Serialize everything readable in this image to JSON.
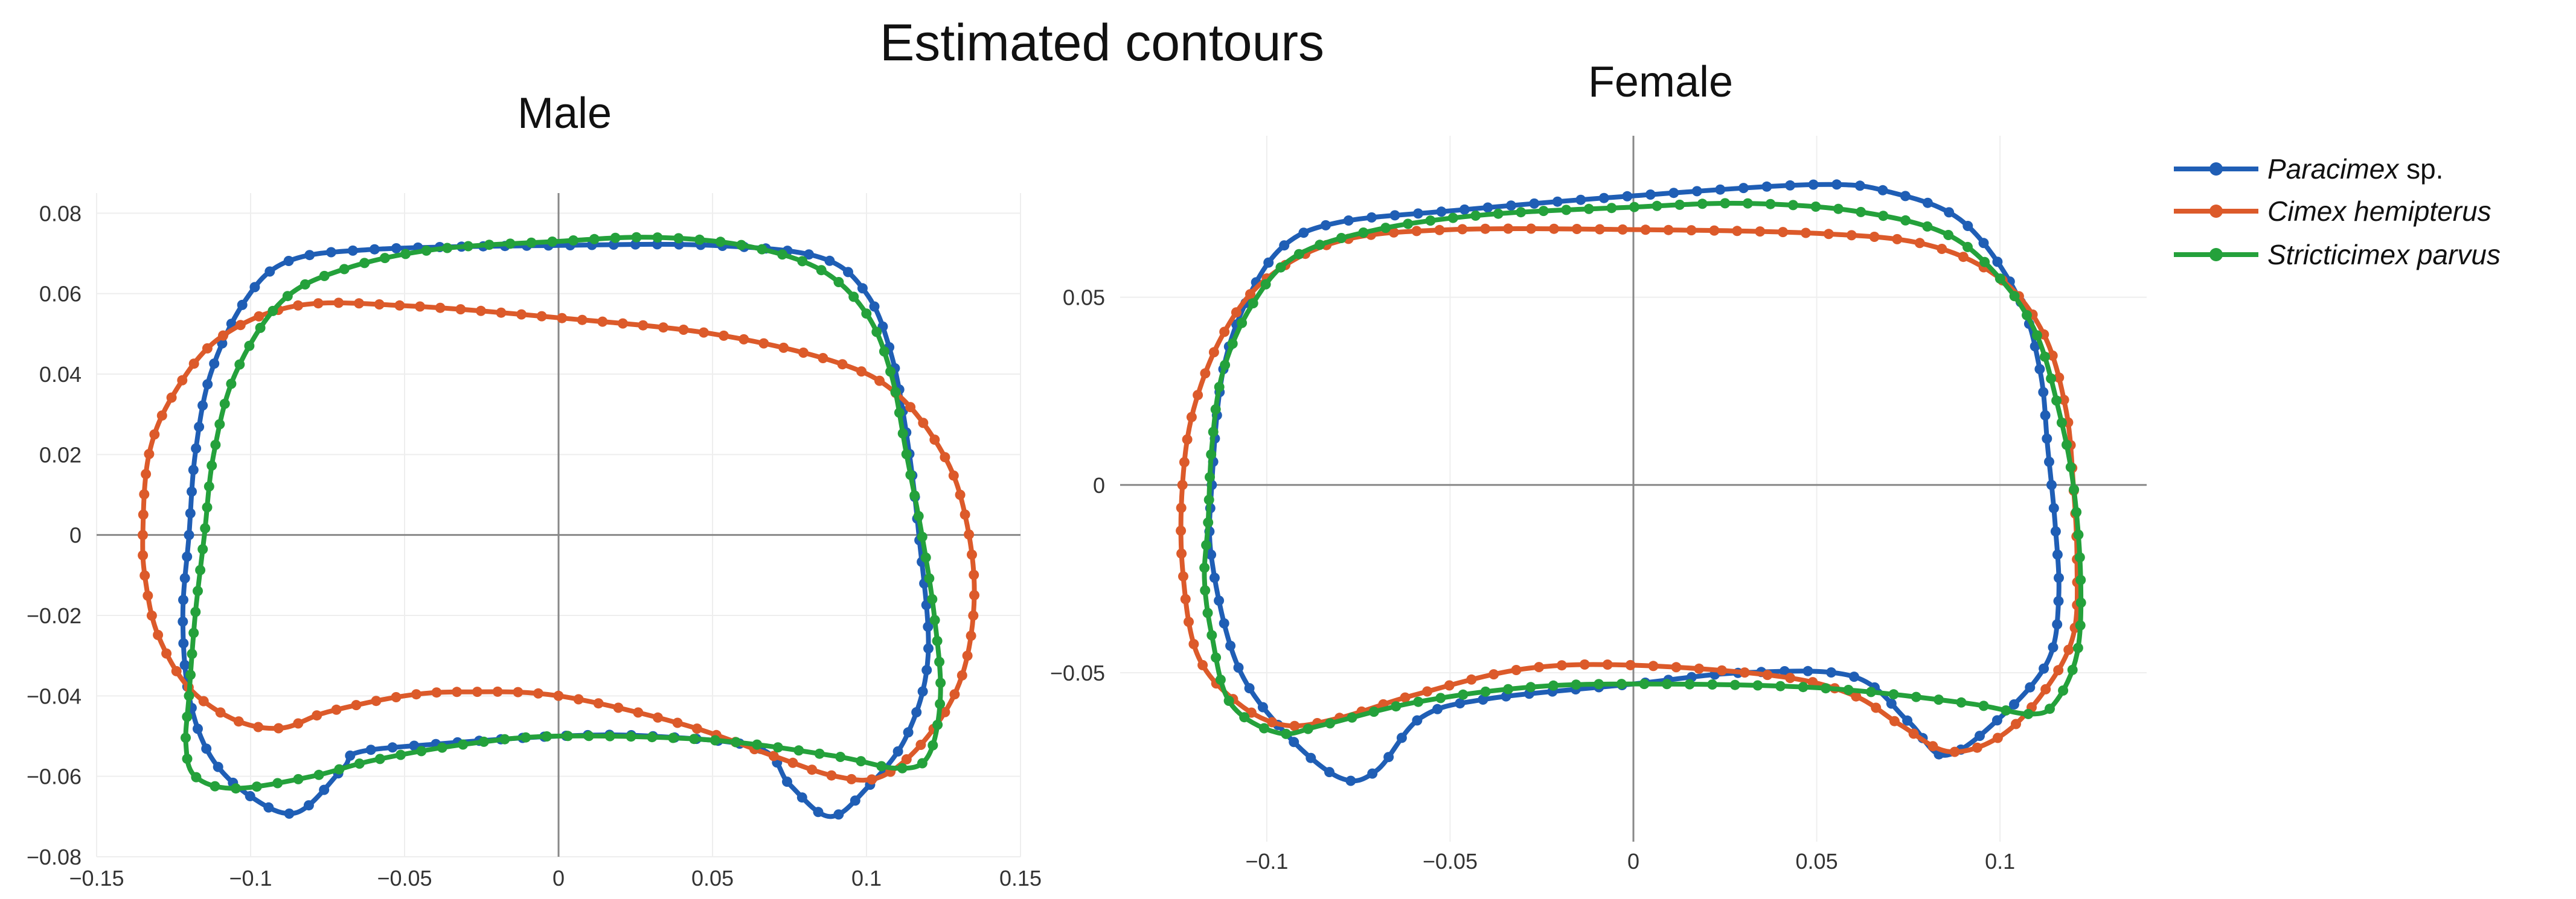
{
  "title": "Estimated contours",
  "chart_data": [
    {
      "type": "line",
      "panel": "male",
      "title": "Male",
      "xlim": [
        -0.15,
        0.15
      ],
      "ylim": [
        -0.08,
        0.085
      ],
      "xticks": [
        -0.15,
        -0.1,
        -0.05,
        0,
        0.05,
        0.1,
        0.15
      ],
      "xtick_labels": [
        "−0.15",
        "−0.1",
        "−0.05",
        "0",
        "0.05",
        "0.1",
        "0.15"
      ],
      "yticks": [
        0.08,
        0.06,
        0.04,
        0.02,
        0,
        -0.02,
        -0.04,
        -0.06,
        -0.08
      ],
      "ytick_labels": [
        "0.08",
        "0.06",
        "0.04",
        "0.02",
        "0",
        "−0.02",
        "−0.04",
        "−0.06",
        "−0.08"
      ],
      "series": [
        {
          "name": "Paracimex sp.",
          "color": "#1f5eb5",
          "points": [
            [
              -0.12,
              0
            ],
            [
              -0.118,
              0.02
            ],
            [
              -0.113,
              0.04
            ],
            [
              -0.102,
              0.058
            ],
            [
              -0.088,
              0.068
            ],
            [
              -0.06,
              0.071
            ],
            [
              0,
              0.072
            ],
            [
              0.05,
              0.072
            ],
            [
              0.085,
              0.069
            ],
            [
              0.1,
              0.06
            ],
            [
              0.108,
              0.045
            ],
            [
              0.113,
              0.025
            ],
            [
              0.117,
              0
            ],
            [
              0.12,
              -0.03
            ],
            [
              0.113,
              -0.05
            ],
            [
              0.1,
              -0.063
            ],
            [
              0.088,
              -0.07
            ],
            [
              0.075,
              -0.062
            ],
            [
              0.065,
              -0.053
            ],
            [
              0.03,
              -0.05
            ],
            [
              0,
              -0.05
            ],
            [
              -0.04,
              -0.052
            ],
            [
              -0.065,
              -0.054
            ],
            [
              -0.07,
              -0.058
            ],
            [
              -0.085,
              -0.069
            ],
            [
              -0.1,
              -0.065
            ],
            [
              -0.113,
              -0.055
            ],
            [
              -0.12,
              -0.04
            ],
            [
              -0.122,
              -0.02
            ]
          ]
        },
        {
          "name": "Cimex hemipterus",
          "color": "#dc5a2a",
          "points": [
            [
              -0.135,
              0
            ],
            [
              -0.133,
              0.02
            ],
            [
              -0.125,
              0.035
            ],
            [
              -0.11,
              0.049
            ],
            [
              -0.085,
              0.057
            ],
            [
              -0.05,
              0.057
            ],
            [
              0,
              0.054
            ],
            [
              0.05,
              0.05
            ],
            [
              0.09,
              0.043
            ],
            [
              0.11,
              0.035
            ],
            [
              0.125,
              0.02
            ],
            [
              0.132,
              0.005
            ],
            [
              0.135,
              -0.015
            ],
            [
              0.131,
              -0.035
            ],
            [
              0.12,
              -0.05
            ],
            [
              0.105,
              -0.06
            ],
            [
              0.09,
              -0.06
            ],
            [
              0.07,
              -0.055
            ],
            [
              0.04,
              -0.047
            ],
            [
              0,
              -0.04
            ],
            [
              -0.03,
              -0.039
            ],
            [
              -0.05,
              -0.04
            ],
            [
              -0.075,
              -0.044
            ],
            [
              -0.09,
              -0.048
            ],
            [
              -0.105,
              -0.046
            ],
            [
              -0.12,
              -0.038
            ],
            [
              -0.13,
              -0.025
            ],
            [
              -0.134,
              -0.012
            ]
          ]
        },
        {
          "name": "Stricticimex parvus",
          "color": "#24a13b",
          "points": [
            [
              -0.12,
              -0.04
            ],
            [
              -0.118,
              -0.02
            ],
            [
              -0.115,
              0
            ],
            [
              -0.112,
              0.02
            ],
            [
              -0.105,
              0.04
            ],
            [
              -0.09,
              0.058
            ],
            [
              -0.07,
              0.066
            ],
            [
              -0.04,
              0.071
            ],
            [
              0,
              0.073
            ],
            [
              0.03,
              0.074
            ],
            [
              0.06,
              0.072
            ],
            [
              0.085,
              0.066
            ],
            [
              0.1,
              0.055
            ],
            [
              0.108,
              0.04
            ],
            [
              0.113,
              0.02
            ],
            [
              0.118,
              0
            ],
            [
              0.122,
              -0.02
            ],
            [
              0.124,
              -0.04
            ],
            [
              0.12,
              -0.055
            ],
            [
              0.11,
              -0.058
            ],
            [
              0.09,
              -0.055
            ],
            [
              0.05,
              -0.051
            ],
            [
              0,
              -0.05
            ],
            [
              -0.03,
              -0.052
            ],
            [
              -0.06,
              -0.056
            ],
            [
              -0.08,
              -0.06
            ],
            [
              -0.105,
              -0.063
            ],
            [
              -0.118,
              -0.06
            ],
            [
              -0.121,
              -0.052
            ]
          ]
        }
      ]
    },
    {
      "type": "line",
      "panel": "female",
      "title": "Female",
      "xlim": [
        -0.14,
        0.14
      ],
      "ylim": [
        -0.095,
        0.093
      ],
      "xticks": [
        -0.1,
        -0.05,
        0,
        0.05,
        0.1
      ],
      "xtick_labels": [
        "−0.1",
        "−0.05",
        "0",
        "0.05",
        "0.1"
      ],
      "yticks": [
        0.05,
        0,
        -0.05
      ],
      "ytick_labels": [
        "0.05",
        "0",
        "−0.05"
      ],
      "series": [
        {
          "name": "Paracimex sp.",
          "color": "#1f5eb5",
          "points": [
            [
              -0.115,
              0
            ],
            [
              -0.112,
              0.03
            ],
            [
              -0.105,
              0.05
            ],
            [
              -0.095,
              0.064
            ],
            [
              -0.08,
              0.07
            ],
            [
              -0.05,
              0.073
            ],
            [
              0,
              0.077
            ],
            [
              0.05,
              0.08
            ],
            [
              0.07,
              0.078
            ],
            [
              0.09,
              0.07
            ],
            [
              0.105,
              0.05
            ],
            [
              0.111,
              0.03
            ],
            [
              0.113,
              0.01
            ],
            [
              0.115,
              -0.01
            ],
            [
              0.116,
              -0.03
            ],
            [
              0.113,
              -0.047
            ],
            [
              0.1,
              -0.062
            ],
            [
              0.085,
              -0.072
            ],
            [
              0.075,
              -0.063
            ],
            [
              0.06,
              -0.051
            ],
            [
              0.03,
              -0.05
            ],
            [
              0,
              -0.053
            ],
            [
              -0.04,
              -0.057
            ],
            [
              -0.058,
              -0.062
            ],
            [
              -0.07,
              -0.076
            ],
            [
              -0.08,
              -0.078
            ],
            [
              -0.095,
              -0.066
            ],
            [
              -0.108,
              -0.048
            ],
            [
              -0.115,
              -0.02
            ]
          ]
        },
        {
          "name": "Cimex hemipterus",
          "color": "#dc5a2a",
          "points": [
            [
              -0.123,
              0
            ],
            [
              -0.12,
              0.02
            ],
            [
              -0.112,
              0.04
            ],
            [
              -0.1,
              0.055
            ],
            [
              -0.08,
              0.065
            ],
            [
              -0.05,
              0.068
            ],
            [
              0,
              0.068
            ],
            [
              0.05,
              0.067
            ],
            [
              0.08,
              0.064
            ],
            [
              0.1,
              0.055
            ],
            [
              0.112,
              0.04
            ],
            [
              0.118,
              0.02
            ],
            [
              0.12,
              0
            ],
            [
              0.121,
              -0.02
            ],
            [
              0.12,
              -0.04
            ],
            [
              0.112,
              -0.055
            ],
            [
              0.1,
              -0.067
            ],
            [
              0.086,
              -0.071
            ],
            [
              0.073,
              -0.064
            ],
            [
              0.06,
              -0.056
            ],
            [
              0.04,
              -0.051
            ],
            [
              0,
              -0.048
            ],
            [
              -0.03,
              -0.049
            ],
            [
              -0.06,
              -0.056
            ],
            [
              -0.08,
              -0.062
            ],
            [
              -0.095,
              -0.064
            ],
            [
              -0.108,
              -0.058
            ],
            [
              -0.119,
              -0.045
            ],
            [
              -0.123,
              -0.022
            ]
          ]
        },
        {
          "name": "Stricticimex parvus",
          "color": "#24a13b",
          "points": [
            [
              -0.116,
              -0.01
            ],
            [
              -0.115,
              0.01
            ],
            [
              -0.112,
              0.03
            ],
            [
              -0.104,
              0.048
            ],
            [
              -0.092,
              0.061
            ],
            [
              -0.07,
              0.068
            ],
            [
              -0.04,
              0.072
            ],
            [
              0,
              0.074
            ],
            [
              0.03,
              0.075
            ],
            [
              0.06,
              0.073
            ],
            [
              0.085,
              0.067
            ],
            [
              0.1,
              0.055
            ],
            [
              0.11,
              0.04
            ],
            [
              0.116,
              0.02
            ],
            [
              0.12,
              0
            ],
            [
              0.122,
              -0.025
            ],
            [
              0.121,
              -0.045
            ],
            [
              0.115,
              -0.058
            ],
            [
              0.108,
              -0.061
            ],
            [
              0.09,
              -0.058
            ],
            [
              0.05,
              -0.054
            ],
            [
              0,
              -0.053
            ],
            [
              -0.03,
              -0.054
            ],
            [
              -0.06,
              -0.058
            ],
            [
              -0.085,
              -0.064
            ],
            [
              -0.097,
              -0.066
            ],
            [
              -0.11,
              -0.058
            ],
            [
              -0.115,
              -0.04
            ],
            [
              -0.117,
              -0.025
            ]
          ]
        }
      ]
    }
  ],
  "legend": [
    {
      "italic": "Paracimex",
      "suffix": " sp.",
      "color": "#1f5eb5"
    },
    {
      "italic": "Cimex hemipterus",
      "suffix": "",
      "color": "#dc5a2a"
    },
    {
      "italic": "Stricticimex parvus",
      "suffix": "",
      "color": "#24a13b"
    }
  ]
}
